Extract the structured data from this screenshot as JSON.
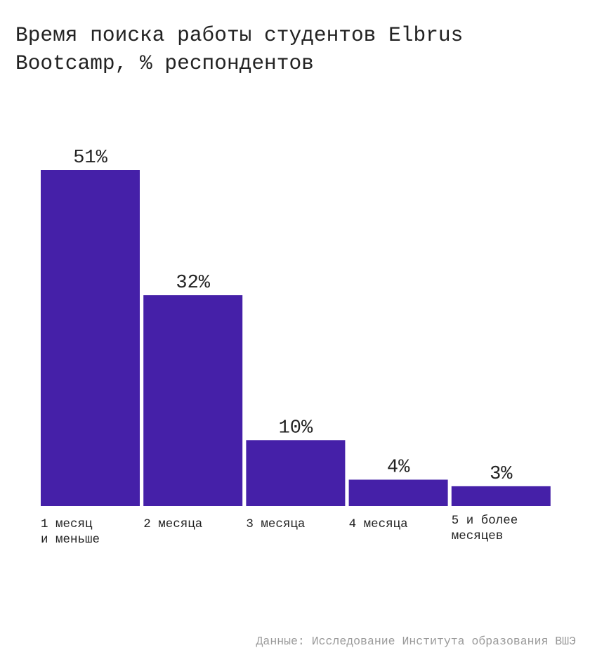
{
  "chart_data": {
    "type": "bar",
    "title": "Время поиска работы студентов Elbrus\nBootcamp, % респондентов",
    "categories": [
      "1 месяц\nи меньше",
      "2 месяца",
      "3 месяца",
      "4 месяца",
      "5 и более\nмесяцев"
    ],
    "values": [
      51,
      32,
      10,
      4,
      3
    ],
    "value_labels": [
      "51%",
      "32%",
      "10%",
      "4%",
      "3%"
    ],
    "xlabel": "",
    "ylabel": "",
    "ylim": [
      0,
      51
    ],
    "grid": false,
    "bar_color": "#4520a8"
  },
  "footer": "Данные: Исследование Института образования ВШЭ"
}
